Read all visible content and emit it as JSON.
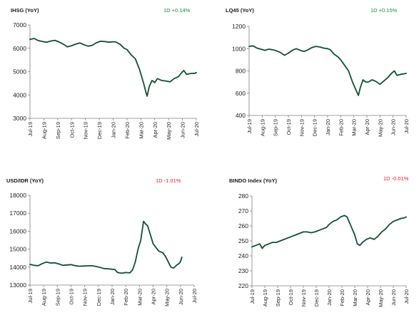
{
  "colors": {
    "line": "#0f5132",
    "up": "#1e8c3a",
    "down": "#e0202a",
    "axis": "#808080"
  },
  "chart_data": [
    {
      "type": "line",
      "title": "IHSG (YoY)",
      "change": "1D +0.14%",
      "direction": "up",
      "ylim": [
        3000,
        7000
      ],
      "yticks": [
        "7000",
        "6000",
        "5000",
        "4000",
        "3000"
      ],
      "xticks": [
        "Jul-19",
        "Aug-19",
        "Sep-19",
        "Oct-19",
        "Nov-19",
        "Dec-19",
        "Jan-20",
        "Feb-20",
        "Mar-20",
        "Apr-20",
        "May-20",
        "Jun-20",
        "Jul-20"
      ],
      "grid": false,
      "series": [
        {
          "values": [
            [
              0,
              6380
            ],
            [
              0.3,
              6420
            ],
            [
              0.6,
              6330
            ],
            [
              0.9,
              6290
            ],
            [
              1.2,
              6260
            ],
            [
              1.5,
              6310
            ],
            [
              1.8,
              6340
            ],
            [
              2.1,
              6270
            ],
            [
              2.4,
              6180
            ],
            [
              2.7,
              6060
            ],
            [
              3.0,
              6110
            ],
            [
              3.3,
              6180
            ],
            [
              3.6,
              6230
            ],
            [
              3.9,
              6150
            ],
            [
              4.2,
              6090
            ],
            [
              4.5,
              6130
            ],
            [
              4.8,
              6240
            ],
            [
              5.1,
              6300
            ],
            [
              5.4,
              6290
            ],
            [
              5.7,
              6260
            ],
            [
              6.0,
              6280
            ],
            [
              6.2,
              6270
            ],
            [
              6.5,
              6170
            ],
            [
              6.8,
              6000
            ],
            [
              7.0,
              5950
            ],
            [
              7.3,
              5720
            ],
            [
              7.6,
              5550
            ],
            [
              7.9,
              5100
            ],
            [
              8.2,
              4500
            ],
            [
              8.35,
              4150
            ],
            [
              8.45,
              3950
            ],
            [
              8.6,
              4350
            ],
            [
              8.8,
              4620
            ],
            [
              9.0,
              4530
            ],
            [
              9.2,
              4700
            ],
            [
              9.5,
              4620
            ],
            [
              9.8,
              4600
            ],
            [
              10.1,
              4560
            ],
            [
              10.4,
              4700
            ],
            [
              10.7,
              4780
            ],
            [
              10.9,
              4920
            ],
            [
              11.1,
              5050
            ],
            [
              11.3,
              4880
            ],
            [
              11.6,
              4920
            ],
            [
              11.9,
              4930
            ],
            [
              12.0,
              4960
            ]
          ]
        }
      ]
    },
    {
      "type": "line",
      "title": "LQ45 (YoY)",
      "change": "1D +0.15%",
      "direction": "up",
      "ylim": [
        400,
        1200
      ],
      "yticks": [
        "1200",
        "1000",
        "800",
        "600",
        "400"
      ],
      "xticks": [
        "Jul-19",
        "Aug-19",
        "Sep-19",
        "Oct-19",
        "Nov-19",
        "Dec-19",
        "Jan-20",
        "Feb-20",
        "Mar-20",
        "Apr-20",
        "May-20",
        "Jun-20",
        "Jul-20"
      ],
      "grid": false,
      "series": [
        {
          "values": [
            [
              0,
              1020
            ],
            [
              0.3,
              1025
            ],
            [
              0.6,
              1005
            ],
            [
              0.9,
              995
            ],
            [
              1.2,
              985
            ],
            [
              1.5,
              995
            ],
            [
              1.8,
              990
            ],
            [
              2.1,
              980
            ],
            [
              2.4,
              965
            ],
            [
              2.7,
              940
            ],
            [
              3.0,
              960
            ],
            [
              3.3,
              985
            ],
            [
              3.6,
              1000
            ],
            [
              3.9,
              985
            ],
            [
              4.2,
              975
            ],
            [
              4.5,
              990
            ],
            [
              4.8,
              1010
            ],
            [
              5.1,
              1020
            ],
            [
              5.4,
              1015
            ],
            [
              5.7,
              1005
            ],
            [
              6.0,
              1000
            ],
            [
              6.2,
              990
            ],
            [
              6.5,
              950
            ],
            [
              6.8,
              925
            ],
            [
              7.0,
              900
            ],
            [
              7.3,
              850
            ],
            [
              7.6,
              800
            ],
            [
              7.9,
              700
            ],
            [
              8.2,
              620
            ],
            [
              8.35,
              580
            ],
            [
              8.5,
              650
            ],
            [
              8.7,
              720
            ],
            [
              8.9,
              700
            ],
            [
              9.1,
              700
            ],
            [
              9.4,
              720
            ],
            [
              9.7,
              705
            ],
            [
              10.0,
              680
            ],
            [
              10.3,
              710
            ],
            [
              10.6,
              740
            ],
            [
              10.9,
              780
            ],
            [
              11.1,
              800
            ],
            [
              11.3,
              760
            ],
            [
              11.6,
              770
            ],
            [
              11.9,
              775
            ],
            [
              12.0,
              778
            ]
          ]
        }
      ]
    },
    {
      "type": "line",
      "title": "USD/IDR (YoY)",
      "change": "1D -1.01%",
      "direction": "down",
      "ylim": [
        13000,
        18000
      ],
      "yticks": [
        "18000",
        "17000",
        "16000",
        "15000",
        "14000",
        "13000"
      ],
      "xticks": [
        "Jul-19",
        "Aug-19",
        "Sep-19",
        "Oct-19",
        "Nov-19",
        "Dec-19",
        "Jan-20",
        "Feb-20",
        "Mar-20",
        "Apr-20",
        "May-20",
        "Jun-20",
        "Jul-20"
      ],
      "grid": false,
      "series": [
        {
          "values": [
            [
              0,
              14150
            ],
            [
              0.3,
              14100
            ],
            [
              0.6,
              14080
            ],
            [
              0.9,
              14200
            ],
            [
              1.2,
              14280
            ],
            [
              1.5,
              14230
            ],
            [
              1.8,
              14240
            ],
            [
              2.1,
              14180
            ],
            [
              2.4,
              14100
            ],
            [
              2.7,
              14120
            ],
            [
              3.0,
              14140
            ],
            [
              3.3,
              14080
            ],
            [
              3.6,
              14050
            ],
            [
              3.9,
              14060
            ],
            [
              4.2,
              14070
            ],
            [
              4.5,
              14080
            ],
            [
              4.8,
              14040
            ],
            [
              5.1,
              13990
            ],
            [
              5.4,
              13920
            ],
            [
              5.7,
              13910
            ],
            [
              6.0,
              13880
            ],
            [
              6.2,
              13870
            ],
            [
              6.4,
              13700
            ],
            [
              6.7,
              13660
            ],
            [
              7.0,
              13700
            ],
            [
              7.3,
              13680
            ],
            [
              7.5,
              13850
            ],
            [
              7.7,
              14300
            ],
            [
              7.9,
              15000
            ],
            [
              8.1,
              15500
            ],
            [
              8.3,
              16550
            ],
            [
              8.45,
              16400
            ],
            [
              8.6,
              16300
            ],
            [
              8.8,
              15800
            ],
            [
              9.0,
              15300
            ],
            [
              9.2,
              15100
            ],
            [
              9.4,
              14900
            ],
            [
              9.7,
              14800
            ],
            [
              9.9,
              14600
            ],
            [
              10.1,
              14300
            ],
            [
              10.3,
              14000
            ],
            [
              10.5,
              13950
            ],
            [
              10.7,
              14100
            ],
            [
              10.9,
              14200
            ],
            [
              11.0,
              14300
            ],
            [
              11.1,
              14550
            ]
          ]
        }
      ]
    },
    {
      "type": "line",
      "title": "BINDO Index (YoY)",
      "change": "1D -0.01%",
      "direction": "down",
      "ylim": [
        220,
        280
      ],
      "yticks": [
        "280",
        "270",
        "260",
        "250",
        "240",
        "230",
        "220"
      ],
      "xticks": [
        "Jul-19",
        "Aug-19",
        "Sep-19",
        "Oct-19",
        "Nov-19",
        "Dec-19",
        "Jan-20",
        "Feb-20",
        "Mar-20",
        "Apr-20",
        "May-20",
        "Jun-20",
        "Jul-20"
      ],
      "grid": false,
      "series": [
        {
          "values": [
            [
              0,
              246
            ],
            [
              0.3,
              247
            ],
            [
              0.6,
              248
            ],
            [
              0.8,
              245
            ],
            [
              1.0,
              247
            ],
            [
              1.3,
              248
            ],
            [
              1.6,
              249
            ],
            [
              1.9,
              249
            ],
            [
              2.2,
              250
            ],
            [
              2.5,
              251
            ],
            [
              2.8,
              252
            ],
            [
              3.1,
              253
            ],
            [
              3.4,
              254
            ],
            [
              3.7,
              255
            ],
            [
              4.0,
              256
            ],
            [
              4.3,
              256
            ],
            [
              4.6,
              255.5
            ],
            [
              4.9,
              256
            ],
            [
              5.2,
              257
            ],
            [
              5.5,
              258
            ],
            [
              5.8,
              259
            ],
            [
              6.0,
              261
            ],
            [
              6.3,
              263
            ],
            [
              6.6,
              264
            ],
            [
              6.9,
              266
            ],
            [
              7.2,
              267
            ],
            [
              7.4,
              266
            ],
            [
              7.6,
              262
            ],
            [
              7.8,
              258
            ],
            [
              8.0,
              254
            ],
            [
              8.2,
              248
            ],
            [
              8.4,
              247
            ],
            [
              8.6,
              249
            ],
            [
              8.9,
              251
            ],
            [
              9.2,
              252
            ],
            [
              9.5,
              251
            ],
            [
              9.8,
              253
            ],
            [
              10.1,
              256
            ],
            [
              10.4,
              258
            ],
            [
              10.7,
              261
            ],
            [
              11.0,
              263
            ],
            [
              11.3,
              264
            ],
            [
              11.6,
              265
            ],
            [
              11.9,
              265.5
            ],
            [
              12.0,
              266
            ]
          ]
        }
      ]
    }
  ]
}
